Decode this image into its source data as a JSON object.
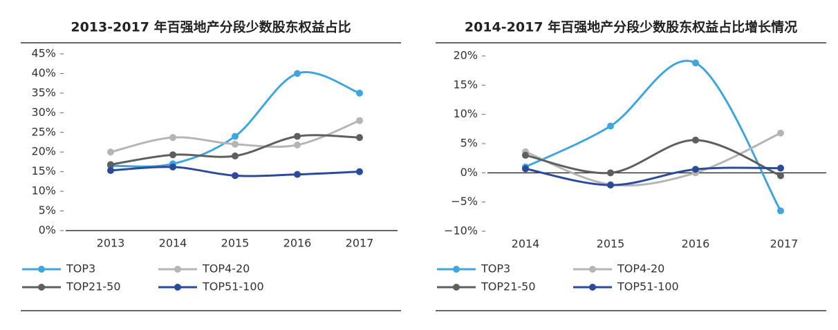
{
  "chart_data": [
    {
      "type": "line",
      "title": "2013-2017 年百强地产分段少数股东权益占比",
      "categories": [
        "2013",
        "2014",
        "2015",
        "2016",
        "2017"
      ],
      "series": [
        {
          "name": "TOP3",
          "color": "#3ea6dc",
          "values": [
            16.5,
            17,
            24,
            40,
            35
          ]
        },
        {
          "name": "TOP4-20",
          "color": "#b5b5b5",
          "values": [
            20,
            23.7,
            22,
            21.8,
            28
          ]
        },
        {
          "name": "TOP21-50",
          "color": "#5f5f5f",
          "values": [
            16.8,
            19.3,
            19,
            24,
            23.7
          ]
        },
        {
          "name": "TOP51-100",
          "color": "#2b4a9a",
          "values": [
            15.3,
            16.2,
            14,
            14.3,
            15
          ]
        }
      ],
      "ylim": [
        0,
        45
      ],
      "yticks": [
        {
          "value": 0,
          "label": "0%"
        },
        {
          "value": 5,
          "label": "5%"
        },
        {
          "value": 10,
          "label": "10%"
        },
        {
          "value": 15,
          "label": "15%"
        },
        {
          "value": 20,
          "label": "20%"
        },
        {
          "value": 25,
          "label": "25%"
        },
        {
          "value": 30,
          "label": "30%"
        },
        {
          "value": 35,
          "label": "35%"
        },
        {
          "value": 40,
          "label": "40%"
        },
        {
          "value": 45,
          "label": "45%"
        }
      ],
      "smooth": true
    },
    {
      "type": "line",
      "title": "2014-2017 年百强地产分段少数股东权益占比增长情况",
      "categories": [
        "2014",
        "2015",
        "2016",
        "2017"
      ],
      "series": [
        {
          "name": "TOP3",
          "color": "#3ea6dc",
          "values": [
            1,
            8,
            18.8,
            -6.5
          ]
        },
        {
          "name": "TOP4-20",
          "color": "#b5b5b5",
          "values": [
            3.6,
            -2,
            0,
            6.8
          ]
        },
        {
          "name": "TOP21-50",
          "color": "#5f5f5f",
          "values": [
            3,
            0,
            5.6,
            -0.5
          ]
        },
        {
          "name": "TOP51-100",
          "color": "#2b4a9a",
          "values": [
            0.7,
            -2.1,
            0.6,
            0.8
          ]
        }
      ],
      "ylim": [
        -10,
        20
      ],
      "yticks": [
        {
          "value": -10,
          "label": "−10%"
        },
        {
          "value": -5,
          "label": "−5%"
        },
        {
          "value": 0,
          "label": "0%"
        },
        {
          "value": 5,
          "label": "5%"
        },
        {
          "value": 10,
          "label": "10%"
        },
        {
          "value": 15,
          "label": "15%"
        },
        {
          "value": 20,
          "label": "20%"
        }
      ],
      "smooth": true
    }
  ]
}
